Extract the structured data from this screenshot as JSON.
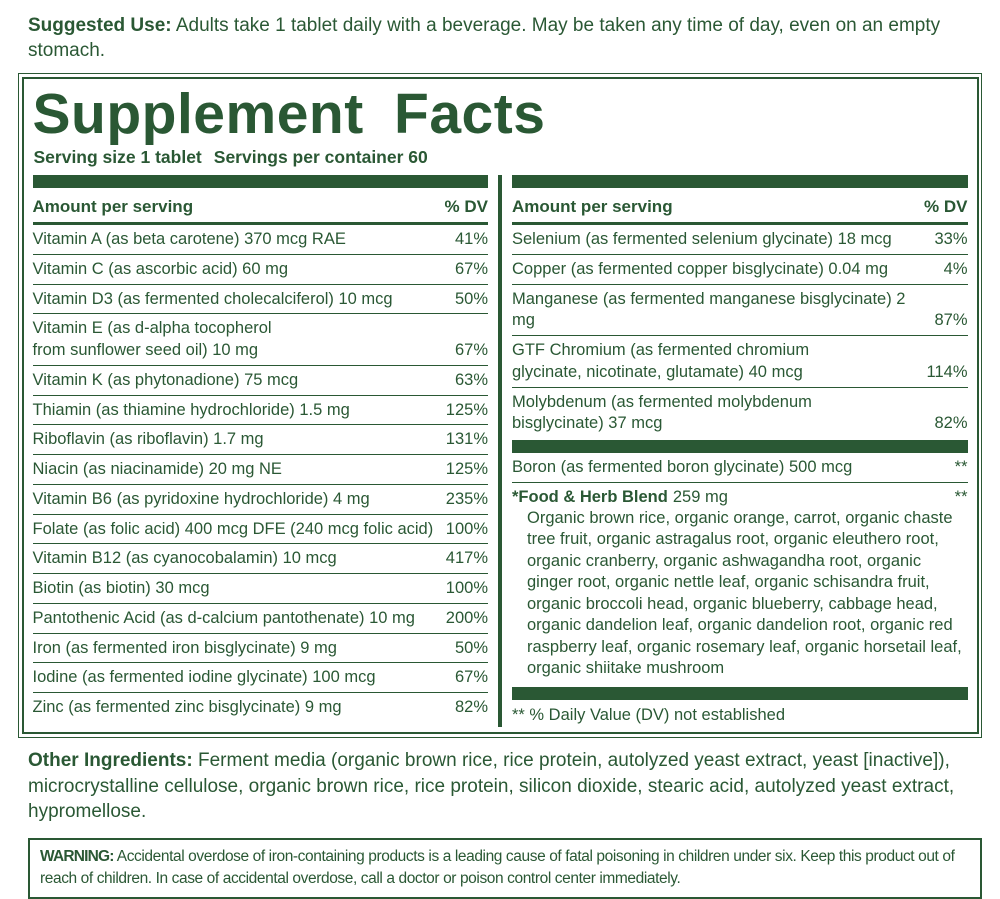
{
  "colors": {
    "green": "#2a5834",
    "background": "#ffffff"
  },
  "suggested_use": {
    "label": "Suggested Use:",
    "text": "Adults take 1 tablet daily with a beverage. May be taken any time of day, even on an empty stomach."
  },
  "panel": {
    "title": "Supplement Facts",
    "serving_size": "Serving size 1 tablet",
    "servings_per_container": "Servings per container 60",
    "left": {
      "header": {
        "amount": "Amount per serving",
        "dv": "% DV"
      },
      "rows": [
        {
          "name": "Vitamin A (as beta carotene) 370 mcg RAE",
          "dv": "41%"
        },
        {
          "name": "Vitamin C (as ascorbic acid) 60 mg",
          "dv": "67%"
        },
        {
          "name": "Vitamin D3 (as fermented cholecalciferol) 10 mcg",
          "dv": "50%"
        },
        {
          "name": "Vitamin E (as d-alpha tocopherol",
          "name2": "from sunflower seed oil) 10 mg",
          "dv": "67%"
        },
        {
          "name": "Vitamin K (as phytonadione) 75 mcg",
          "dv": "63%"
        },
        {
          "name": "Thiamin (as thiamine hydrochloride) 1.5 mg",
          "dv": "125%"
        },
        {
          "name": "Riboflavin (as riboflavin) 1.7 mg",
          "dv": "131%"
        },
        {
          "name": "Niacin (as niacinamide) 20 mg NE",
          "dv": "125%"
        },
        {
          "name": "Vitamin B6 (as pyridoxine hydrochloride) 4 mg",
          "dv": "235%"
        },
        {
          "name": "Folate (as folic acid) 400 mcg DFE (240 mcg folic acid)",
          "dv": "100%"
        },
        {
          "name": "Vitamin B12 (as cyanocobalamin) 10 mcg",
          "dv": "417%"
        },
        {
          "name": "Biotin (as biotin) 30 mcg",
          "dv": "100%"
        },
        {
          "name": "Pantothenic Acid (as d-calcium pantothenate) 10 mg",
          "dv": "200%"
        },
        {
          "name": "Iron (as fermented iron bisglycinate) 9 mg",
          "dv": "50%"
        },
        {
          "name": "Iodine (as fermented iodine glycinate) 100 mcg",
          "dv": "67%"
        },
        {
          "name": "Zinc (as fermented zinc bisglycinate) 9 mg",
          "dv": "82%"
        }
      ]
    },
    "right": {
      "header": {
        "amount": "Amount per serving",
        "dv": "% DV"
      },
      "rows": [
        {
          "name": "Selenium (as fermented selenium glycinate) 18 mcg",
          "dv": "33%"
        },
        {
          "name": "Copper (as fermented copper bisglycinate) 0.04 mg",
          "dv": "4%"
        },
        {
          "name": "Manganese (as fermented manganese bisglycinate) 2 mg",
          "dv": "87%"
        },
        {
          "name": "GTF Chromium (as fermented chromium",
          "name2": "glycinate, nicotinate, glutamate) 40 mcg",
          "dv": "114%"
        },
        {
          "name": "Molybdenum (as fermented molybdenum",
          "name2": "bisglycinate) 37 mcg",
          "dv": "82%"
        }
      ],
      "boron": {
        "name": "Boron (as fermented boron glycinate) 500 mcg",
        "dv": "**"
      },
      "blend": {
        "name": "*Food & Herb Blend",
        "amount": "259 mg",
        "dv": "**",
        "ingredients": "Organic brown rice, organic orange, carrot, organic chaste tree fruit, organic astragalus root, organic eleuthero root, organic cranberry, organic ashwagandha root, organic ginger root, organic nettle leaf, organic schisandra fruit, organic broccoli head, organic blueberry, cabbage head, organic dandelion leaf, organic dandelion root, organic red raspberry leaf, organic rosemary leaf, organic horsetail leaf, organic shiitake mushroom"
      },
      "footnote": "** % Daily Value (DV) not established"
    }
  },
  "other_ingredients": {
    "label": "Other Ingredients:",
    "text": "Ferment media (organic brown rice, rice protein, autolyzed yeast extract, yeast [inactive]), microcrystalline cellulose, organic brown rice, rice protein, silicon dioxide, stearic acid, autolyzed yeast extract, hypromellose."
  },
  "warning": {
    "label": "WARNING:",
    "text": "Accidental overdose of iron-containing products is a leading cause of fatal poisoning in children under six. Keep this product out of reach of children. In case of accidental overdose, call a doctor or poison control center immediately."
  }
}
